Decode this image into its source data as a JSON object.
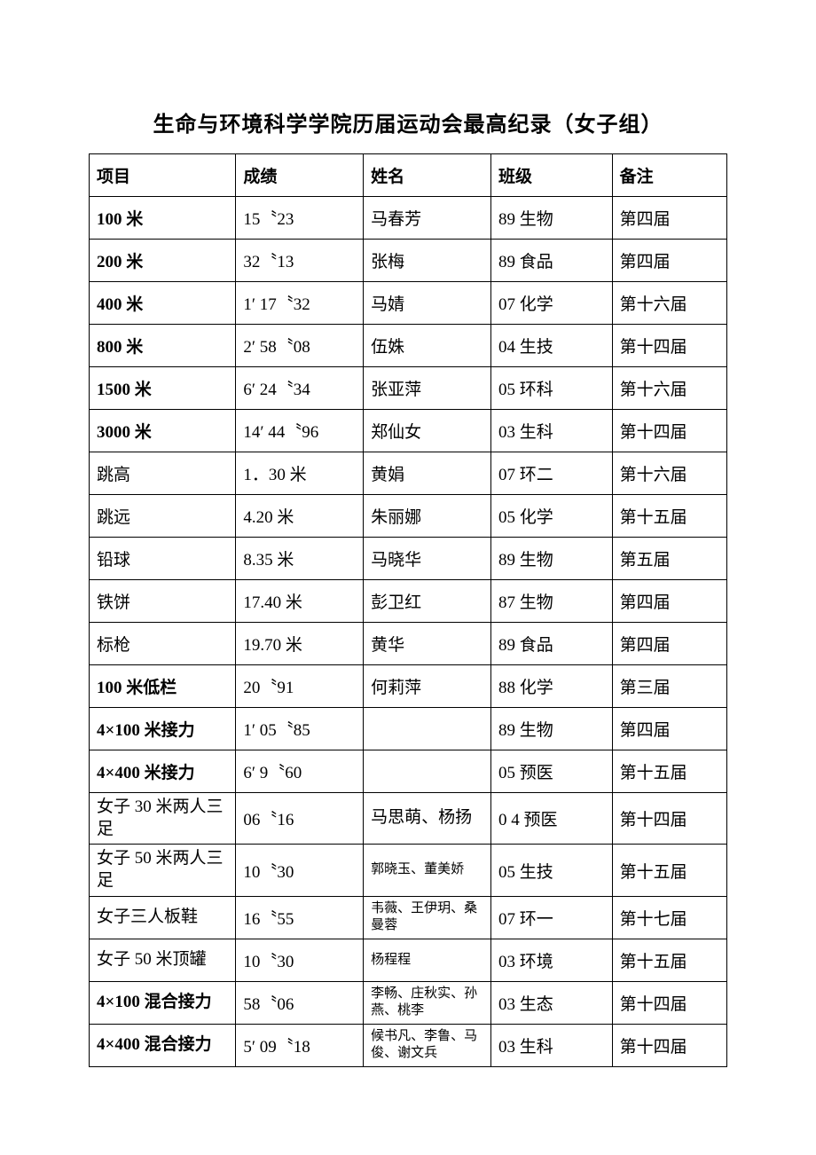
{
  "title": "生命与环境科学学院历届运动会最高纪录（女子组）",
  "columns": [
    "项目",
    "成绩",
    "姓名",
    "班级",
    "备注"
  ],
  "rows": [
    {
      "event": "100 米",
      "event_bold": true,
      "score": "15〝23",
      "name": "马春芳",
      "class": "89 生物",
      "note": "第四届"
    },
    {
      "event": "200 米",
      "event_bold": true,
      "score": "32〝13",
      "name": "张梅",
      "class": "89 食品",
      "note": "第四届"
    },
    {
      "event": "400 米",
      "event_bold": true,
      "score": "1′ 17〝32",
      "name": "马婧",
      "class": "07 化学",
      "note": "第十六届"
    },
    {
      "event": "800 米",
      "event_bold": true,
      "score": "2′ 58〝08",
      "name": "伍姝",
      "class": "04 生技",
      "note": "第十四届"
    },
    {
      "event": "1500 米",
      "event_bold": true,
      "score": "6′ 24〝34",
      "name": "张亚萍",
      "class": "05 环科",
      "note": "第十六届"
    },
    {
      "event": "3000 米",
      "event_bold": true,
      "score": "14′ 44〝96",
      "name": "郑仙女",
      "class": "03 生科",
      "note": "第十四届"
    },
    {
      "event": "跳高",
      "event_bold": false,
      "score": "1．30 米",
      "name": "黄娟",
      "class": "07 环二",
      "note": "第十六届"
    },
    {
      "event": "跳远",
      "event_bold": false,
      "score": "4.20 米",
      "name": "朱丽娜",
      "class": "05 化学",
      "note": "第十五届"
    },
    {
      "event": "铅球",
      "event_bold": false,
      "score": "8.35 米",
      "name": "马晓华",
      "class": "89 生物",
      "note": "第五届"
    },
    {
      "event": "铁饼",
      "event_bold": false,
      "score": "17.40 米",
      "name": "彭卫红",
      "class": "87 生物",
      "note": "第四届"
    },
    {
      "event": "标枪",
      "event_bold": false,
      "score": "19.70 米",
      "name": "黄华",
      "class": "89 食品",
      "note": "第四届"
    },
    {
      "event": "100 米低栏",
      "event_bold": true,
      "score": "20〝91",
      "name": "何莉萍",
      "class": "88 化学",
      "note": "第三届"
    },
    {
      "event": "4×100 米接力",
      "event_bold": true,
      "score": "1′ 05〝85",
      "name": "",
      "class": "89 生物",
      "note": "第四届"
    },
    {
      "event": "4×400 米接力",
      "event_bold": true,
      "score": "6′ 9〝60",
      "name": "",
      "class": "05 预医",
      "note": "第十五届"
    },
    {
      "event": "女子 30 米两人三足",
      "event_bold": false,
      "tight": true,
      "score": "06〝16",
      "name": "马思萌、杨扬",
      "class": "0 4 预医",
      "note": "第十四届"
    },
    {
      "event": "女子 50 米两人三足",
      "event_bold": false,
      "tight": true,
      "score": "10〝30",
      "name": "郭晓玉、董美娇",
      "name_small": true,
      "class": "05 生技",
      "note": "第十五届"
    },
    {
      "event": "女子三人板鞋",
      "event_bold": false,
      "tight": true,
      "score": "16〝55",
      "name": "韦薇、王伊玥、桑曼蓉",
      "name_small": true,
      "class": "07 环一",
      "note": "第十七届"
    },
    {
      "event": "女子 50 米顶罐",
      "event_bold": false,
      "tight": true,
      "score": "10〝30",
      "name": "杨程程",
      "name_small": true,
      "class": "03 环境",
      "note": "第十五届"
    },
    {
      "event": "4×100 混合接力",
      "event_bold": true,
      "tight": true,
      "score": "58〝06",
      "name": "李畅、庄秋实、孙燕、桃李",
      "name_small": true,
      "class": "03 生态",
      "note": "第十四届"
    },
    {
      "event": "4×400 混合接力",
      "event_bold": true,
      "tight": true,
      "score": "5′ 09〝18",
      "name": "候书凡、李鲁、马俊、谢文兵",
      "name_small": true,
      "class": "03 生科",
      "note": "第十四届"
    }
  ]
}
